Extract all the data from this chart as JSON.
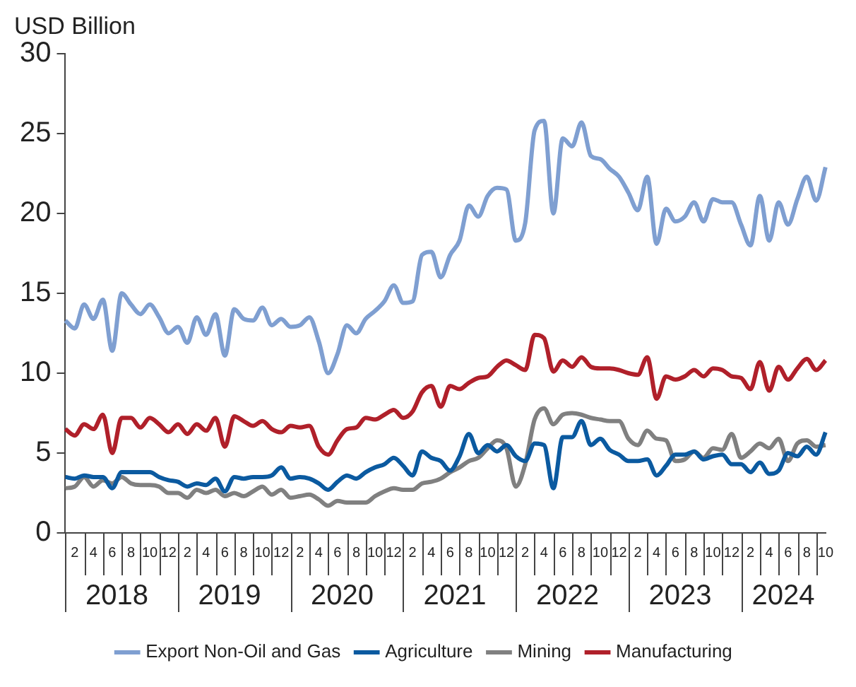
{
  "chart_data": {
    "type": "line",
    "ylabel": "USD Billion",
    "categories": [
      null,
      "2",
      null,
      "4",
      null,
      "6",
      null,
      "8",
      null,
      "10",
      null,
      "12",
      null,
      "2",
      null,
      "4",
      null,
      "6",
      null,
      "8",
      null,
      "10",
      null,
      "12",
      null,
      "2",
      null,
      "4",
      null,
      "6",
      null,
      "8",
      null,
      "10",
      null,
      "12",
      null,
      "2",
      null,
      "4",
      null,
      "6",
      null,
      "8",
      null,
      "10",
      null,
      "12",
      null,
      "2",
      null,
      "4",
      null,
      "6",
      null,
      "8",
      null,
      "10",
      null,
      "12",
      null,
      "2",
      null,
      "4",
      null,
      "6",
      null,
      "8",
      null,
      "10",
      null,
      "12",
      null,
      "2",
      null,
      "4",
      null,
      "6",
      null,
      "8",
      null,
      "10"
    ],
    "annotations": [
      "2018",
      "2019",
      "2020",
      "2021",
      "2022",
      "2023",
      "2024"
    ],
    "ylim": [
      0,
      30
    ],
    "yticks": [
      0,
      5,
      10,
      15,
      20,
      25,
      30
    ],
    "grid": false,
    "legend": "bottom",
    "marker": "none",
    "line_style": "solid",
    "series": [
      {
        "name": "Export Non-Oil and Gas",
        "color": "#7f9fd1",
        "values": [
          13.3,
          12.8,
          14.3,
          13.4,
          14.6,
          11.4,
          15.0,
          14.3,
          13.7,
          14.3,
          13.5,
          12.5,
          12.9,
          11.9,
          13.5,
          12.4,
          13.7,
          11.1,
          14.0,
          13.4,
          13.3,
          14.1,
          13.0,
          13.4,
          12.9,
          13.0,
          13.5,
          12.0,
          10.0,
          11.2,
          13.0,
          12.5,
          13.4,
          13.9,
          14.5,
          15.5,
          14.4,
          14.5,
          17.4,
          17.6,
          16.0,
          17.4,
          18.3,
          20.5,
          19.8,
          21.1,
          21.6,
          21.5,
          18.3,
          19.4,
          25.2,
          25.8,
          20.0,
          24.7,
          24.2,
          25.7,
          23.6,
          23.4,
          22.8,
          22.3,
          21.3,
          20.2,
          22.3,
          18.1,
          20.3,
          19.5,
          19.8,
          20.7,
          19.5,
          20.9,
          20.7,
          20.7,
          19.3,
          18.0,
          21.1,
          18.3,
          20.7,
          19.3,
          20.9,
          22.3,
          20.8,
          22.9
        ]
      },
      {
        "name": "Agriculture",
        "color": "#0b5aa0",
        "values": [
          3.5,
          3.4,
          3.6,
          3.5,
          3.5,
          2.8,
          3.8,
          3.8,
          3.8,
          3.8,
          3.5,
          3.3,
          3.2,
          2.9,
          3.1,
          3.0,
          3.4,
          2.6,
          3.5,
          3.4,
          3.5,
          3.5,
          3.6,
          4.1,
          3.4,
          3.5,
          3.4,
          3.1,
          2.7,
          3.2,
          3.6,
          3.4,
          3.8,
          4.1,
          4.3,
          4.7,
          4.2,
          3.6,
          5.1,
          4.7,
          4.5,
          3.9,
          4.8,
          6.2,
          5.0,
          5.5,
          5.1,
          5.5,
          4.8,
          4.5,
          5.6,
          5.5,
          2.8,
          6.0,
          6.0,
          7.0,
          5.5,
          5.9,
          5.2,
          4.9,
          4.5,
          4.5,
          4.6,
          3.6,
          4.2,
          4.9,
          4.9,
          5.1,
          4.6,
          4.8,
          4.9,
          4.3,
          4.3,
          3.8,
          4.4,
          3.7,
          3.9,
          5.0,
          4.8,
          5.4,
          4.9,
          6.3
        ]
      },
      {
        "name": "Mining",
        "color": "#808080",
        "values": [
          2.8,
          2.9,
          3.5,
          2.9,
          3.3,
          3.1,
          3.5,
          3.1,
          3.0,
          3.0,
          2.9,
          2.5,
          2.5,
          2.2,
          2.7,
          2.5,
          2.7,
          2.3,
          2.5,
          2.3,
          2.6,
          2.9,
          2.4,
          2.7,
          2.2,
          2.3,
          2.4,
          2.1,
          1.7,
          2.0,
          1.9,
          1.9,
          1.9,
          2.3,
          2.6,
          2.8,
          2.7,
          2.7,
          3.1,
          3.2,
          3.4,
          3.8,
          4.1,
          4.5,
          4.7,
          5.3,
          5.8,
          5.3,
          2.9,
          4.3,
          7.1,
          7.8,
          6.8,
          7.4,
          7.5,
          7.4,
          7.2,
          7.1,
          7.0,
          7.0,
          5.9,
          5.5,
          6.4,
          5.9,
          5.8,
          4.5,
          4.6,
          5.1,
          4.7,
          5.3,
          5.2,
          6.2,
          4.7,
          5.1,
          5.6,
          5.3,
          5.9,
          4.5,
          5.6,
          5.8,
          5.4,
          5.5
        ]
      },
      {
        "name": "Manufacturing",
        "color": "#b0202a",
        "values": [
          6.5,
          6.1,
          6.8,
          6.5,
          7.4,
          5.0,
          7.2,
          7.2,
          6.6,
          7.2,
          6.8,
          6.3,
          6.8,
          6.2,
          6.8,
          6.4,
          7.2,
          5.4,
          7.3,
          7.0,
          6.7,
          7.0,
          6.5,
          6.3,
          6.7,
          6.6,
          6.7,
          5.4,
          4.9,
          5.8,
          6.5,
          6.6,
          7.2,
          7.1,
          7.4,
          7.7,
          7.2,
          7.6,
          8.8,
          9.2,
          7.9,
          9.2,
          9.0,
          9.4,
          9.7,
          9.8,
          10.4,
          10.8,
          10.5,
          10.2,
          12.4,
          12.2,
          10.1,
          10.8,
          10.4,
          11.0,
          10.4,
          10.3,
          10.3,
          10.2,
          10.0,
          9.9,
          11.0,
          8.4,
          9.8,
          9.6,
          9.8,
          10.2,
          9.8,
          10.3,
          10.2,
          9.8,
          9.7,
          9.0,
          10.7,
          8.9,
          10.4,
          9.6,
          10.3,
          10.9,
          10.2,
          10.8
        ]
      }
    ]
  }
}
